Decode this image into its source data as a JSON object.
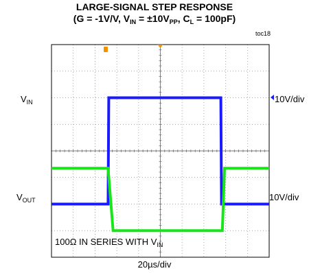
{
  "title": {
    "line1": "LARGE-SIGNAL STEP RESPONSE",
    "g": "(G = -1V/V, V",
    "g_sub": "IN",
    "g_mid": " = ±10V",
    "g_sub2": "PP",
    "g_mid2": ", C",
    "g_sub3": "L",
    "g_end": " = 100pF)"
  },
  "toc": "toc18",
  "vin_label": {
    "main": "V",
    "sub": "IN"
  },
  "vout_label": {
    "main": "V",
    "sub": "OUT"
  },
  "vin_scale": "10V/div",
  "vout_scale": "10V/div",
  "note": {
    "text": "100Ω IN SERIES WITH V",
    "sub": "IN"
  },
  "xlabel": "20µs/div",
  "chart_data": {
    "type": "line",
    "title": "LARGE-SIGNAL STEP RESPONSE",
    "grid": true,
    "x_divisions": 10,
    "y_divisions": 8,
    "x_unit_per_div": "20µs",
    "colors": {
      "vin": "#1a1aff",
      "vout": "#19e619",
      "grid": "#888888",
      "frame": "#000000"
    },
    "series": [
      {
        "name": "VIN",
        "x_div": [
          0,
          2.6,
          2.63,
          7.78,
          7.81,
          10
        ],
        "y_div": [
          -2.0,
          -2.0,
          2.0,
          2.0,
          -2.0,
          -2.0
        ]
      },
      {
        "name": "VOUT",
        "x_div": [
          0,
          2.6,
          2.83,
          7.85,
          7.95,
          10
        ],
        "y_div": [
          -0.65,
          -0.65,
          -3.0,
          -3.0,
          -0.65,
          -0.65
        ]
      }
    ]
  }
}
